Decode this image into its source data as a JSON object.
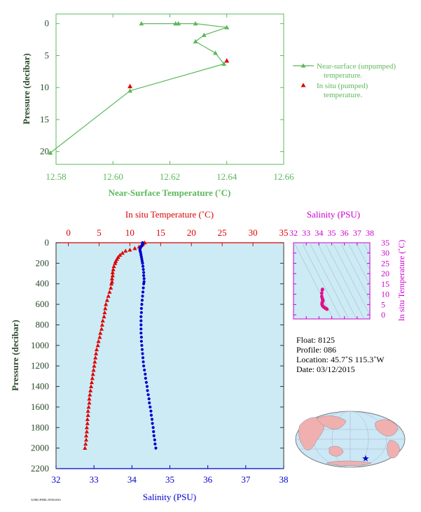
{
  "colors": {
    "near_surface": "#5cb85c",
    "in_situ": "#dd0000",
    "salinity": "#0000cc",
    "ts_magenta": "#cc00cc",
    "axis_text": "#2a4a2a",
    "plot_bg": "#ccebf5",
    "land": "#f0b0b0",
    "ocean": "#cce7f5"
  },
  "top_chart": {
    "xlabel": "Near-Surface Temperature (˚C)",
    "ylabel": "Pressure (decibar)",
    "legend_near_surface_1": "Near-surface (unpumped)",
    "legend_near_surface_2": "temperature.",
    "legend_in_situ_1": "In situ (pumped)",
    "legend_in_situ_2": "temperature."
  },
  "bottom_chart": {
    "top_xlabel": "In situ Temperature (˚C)",
    "bottom_xlabel": "Salinity (PSU)",
    "ylabel": "Pressure (decibar)"
  },
  "ts_chart": {
    "top_xlabel": "Salinity (PSU)",
    "right_ylabel": "In situ Temperature (˚C)"
  },
  "info": {
    "float": "Float: 8125",
    "profile": "Profile: 086",
    "location": "Location: 45.7˚S 115.3˚W",
    "date": "Date: 03/12/2015"
  },
  "footer_text": "AOML/PMEL 09/06/2016",
  "chart_data": [
    {
      "type": "line",
      "title": "",
      "xlabel": "Near-Surface Temperature (˚C)",
      "ylabel": "Pressure (decibar)",
      "xlim": [
        12.58,
        12.66
      ],
      "ylim": [
        22,
        -1.5
      ],
      "x_ticks": [
        12.58,
        12.6,
        12.62,
        12.64,
        12.66
      ],
      "y_ticks": [
        0,
        5,
        10,
        15,
        20
      ],
      "series": [
        {
          "name": "Near-surface (unpumped) temperature.",
          "marker": "triangle",
          "points": [
            [
              12.61,
              0.0
            ],
            [
              12.622,
              0.0
            ],
            [
              12.623,
              0.0
            ],
            [
              12.629,
              0.0
            ],
            [
              12.64,
              0.6
            ],
            [
              12.632,
              1.8
            ],
            [
              12.629,
              2.8
            ],
            [
              12.636,
              4.6
            ],
            [
              12.639,
              6.3
            ],
            [
              12.606,
              10.5
            ],
            [
              12.578,
              20.2
            ]
          ]
        },
        {
          "name": "In situ (pumped) temperature.",
          "marker": "triangle",
          "points": [
            [
              12.64,
              5.8
            ],
            [
              12.606,
              9.8
            ]
          ]
        }
      ]
    },
    {
      "type": "line",
      "title": "",
      "xlabel": "Salinity (PSU)",
      "x2label": "In situ Temperature (˚C)",
      "ylabel": "Pressure (decibar)",
      "ylim": [
        2200,
        0
      ],
      "salinity_xlim": [
        32,
        38
      ],
      "temperature_xlim": [
        -2,
        35
      ],
      "salinity_ticks": [
        32,
        33,
        34,
        35,
        36,
        37,
        38
      ],
      "temperature_ticks": [
        0,
        5,
        10,
        15,
        20,
        25,
        30,
        35
      ],
      "y_ticks": [
        0,
        200,
        400,
        600,
        800,
        1000,
        1200,
        1400,
        1600,
        1800,
        2000,
        2200
      ],
      "series": [
        {
          "name": "In situ Temperature",
          "axis": "temperature",
          "marker": "triangle",
          "points": [
            [
              12.4,
              0
            ],
            [
              12.1,
              10
            ],
            [
              12.0,
              20
            ],
            [
              11.5,
              40
            ],
            [
              10.8,
              55
            ],
            [
              10.0,
              70
            ],
            [
              9.3,
              80
            ],
            [
              8.8,
              100
            ],
            [
              8.4,
              120
            ],
            [
              8.1,
              140
            ],
            [
              7.9,
              160
            ],
            [
              7.7,
              180
            ],
            [
              7.6,
              200
            ],
            [
              7.4,
              230
            ],
            [
              7.3,
              260
            ],
            [
              7.2,
              290
            ],
            [
              7.2,
              320
            ],
            [
              7.1,
              350
            ],
            [
              7.1,
              380
            ],
            [
              7.0,
              400
            ],
            [
              6.9,
              440
            ],
            [
              6.7,
              480
            ],
            [
              6.5,
              520
            ],
            [
              6.3,
              560
            ],
            [
              6.1,
              600
            ],
            [
              6.0,
              640
            ],
            [
              5.9,
              680
            ],
            [
              5.8,
              720
            ],
            [
              5.6,
              760
            ],
            [
              5.5,
              800
            ],
            [
              5.4,
              840
            ],
            [
              5.2,
              880
            ],
            [
              5.1,
              920
            ],
            [
              4.9,
              960
            ],
            [
              4.8,
              1000
            ],
            [
              4.6,
              1040
            ],
            [
              4.5,
              1080
            ],
            [
              4.4,
              1120
            ],
            [
              4.3,
              1160
            ],
            [
              4.2,
              1200
            ],
            [
              4.1,
              1240
            ],
            [
              4.0,
              1280
            ],
            [
              3.9,
              1320
            ],
            [
              3.8,
              1360
            ],
            [
              3.7,
              1400
            ],
            [
              3.6,
              1440
            ],
            [
              3.5,
              1480
            ],
            [
              3.4,
              1520
            ],
            [
              3.4,
              1560
            ],
            [
              3.3,
              1600
            ],
            [
              3.2,
              1640
            ],
            [
              3.2,
              1680
            ],
            [
              3.1,
              1720
            ],
            [
              3.1,
              1760
            ],
            [
              3.0,
              1800
            ],
            [
              3.0,
              1840
            ],
            [
              2.9,
              1880
            ],
            [
              2.9,
              1920
            ],
            [
              2.8,
              1960
            ],
            [
              2.7,
              2000
            ]
          ]
        },
        {
          "name": "Salinity",
          "axis": "salinity",
          "marker": "circle",
          "points": [
            [
              34.28,
              0
            ],
            [
              34.28,
              10
            ],
            [
              34.27,
              20
            ],
            [
              34.26,
              30
            ],
            [
              34.24,
              40
            ],
            [
              34.22,
              55
            ],
            [
              34.21,
              70
            ],
            [
              34.22,
              85
            ],
            [
              34.23,
              100
            ],
            [
              34.24,
              120
            ],
            [
              34.25,
              140
            ],
            [
              34.26,
              160
            ],
            [
              34.27,
              180
            ],
            [
              34.28,
              200
            ],
            [
              34.29,
              230
            ],
            [
              34.3,
              260
            ],
            [
              34.31,
              290
            ],
            [
              34.31,
              320
            ],
            [
              34.32,
              350
            ],
            [
              34.32,
              380
            ],
            [
              34.31,
              400
            ],
            [
              34.3,
              440
            ],
            [
              34.29,
              480
            ],
            [
              34.28,
              520
            ],
            [
              34.27,
              560
            ],
            [
              34.26,
              600
            ],
            [
              34.25,
              640
            ],
            [
              34.25,
              680
            ],
            [
              34.24,
              720
            ],
            [
              34.24,
              760
            ],
            [
              34.24,
              800
            ],
            [
              34.24,
              840
            ],
            [
              34.24,
              880
            ],
            [
              34.25,
              920
            ],
            [
              34.25,
              960
            ],
            [
              34.26,
              1000
            ],
            [
              34.27,
              1040
            ],
            [
              34.28,
              1080
            ],
            [
              34.29,
              1120
            ],
            [
              34.3,
              1160
            ],
            [
              34.31,
              1200
            ],
            [
              34.33,
              1240
            ],
            [
              34.35,
              1280
            ],
            [
              34.36,
              1320
            ],
            [
              34.38,
              1360
            ],
            [
              34.4,
              1400
            ],
            [
              34.41,
              1440
            ],
            [
              34.43,
              1480
            ],
            [
              34.45,
              1520
            ],
            [
              34.46,
              1560
            ],
            [
              34.48,
              1600
            ],
            [
              34.5,
              1640
            ],
            [
              34.51,
              1680
            ],
            [
              34.53,
              1720
            ],
            [
              34.54,
              1760
            ],
            [
              34.56,
              1800
            ],
            [
              34.57,
              1840
            ],
            [
              34.58,
              1880
            ],
            [
              34.6,
              1920
            ],
            [
              34.61,
              1960
            ],
            [
              34.63,
              2000
            ]
          ]
        }
      ]
    },
    {
      "type": "scatter",
      "title": "",
      "xlabel": "Salinity (PSU)",
      "ylabel": "In situ Temperature (˚C)",
      "xlim": [
        32,
        38
      ],
      "ylim": [
        -2,
        35
      ],
      "x_ticks": [
        32,
        33,
        34,
        35,
        36,
        37,
        38
      ],
      "y_ticks": [
        0,
        5,
        10,
        15,
        20,
        25,
        30,
        35
      ],
      "series": [
        {
          "name": "T-S",
          "marker": "circle",
          "points": [
            [
              34.28,
              12.4
            ],
            [
              34.26,
              12.0
            ],
            [
              34.22,
              10.5
            ],
            [
              34.22,
              9.0
            ],
            [
              34.25,
              8.2
            ],
            [
              34.28,
              7.6
            ],
            [
              34.31,
              7.2
            ],
            [
              34.32,
              7.0
            ],
            [
              34.3,
              6.8
            ],
            [
              34.28,
              6.5
            ],
            [
              34.26,
              6.1
            ],
            [
              34.25,
              5.8
            ],
            [
              34.24,
              5.5
            ],
            [
              34.24,
              5.1
            ],
            [
              34.26,
              4.8
            ],
            [
              34.28,
              4.4
            ],
            [
              34.31,
              4.2
            ],
            [
              34.35,
              3.9
            ],
            [
              34.4,
              3.7
            ],
            [
              34.43,
              3.5
            ],
            [
              34.48,
              3.3
            ],
            [
              34.53,
              3.1
            ],
            [
              34.56,
              3.0
            ],
            [
              34.6,
              2.9
            ],
            [
              34.63,
              2.7
            ]
          ]
        }
      ]
    },
    {
      "type": "map",
      "marker": "star",
      "location": "45.7˚S 115.3˚W"
    }
  ]
}
